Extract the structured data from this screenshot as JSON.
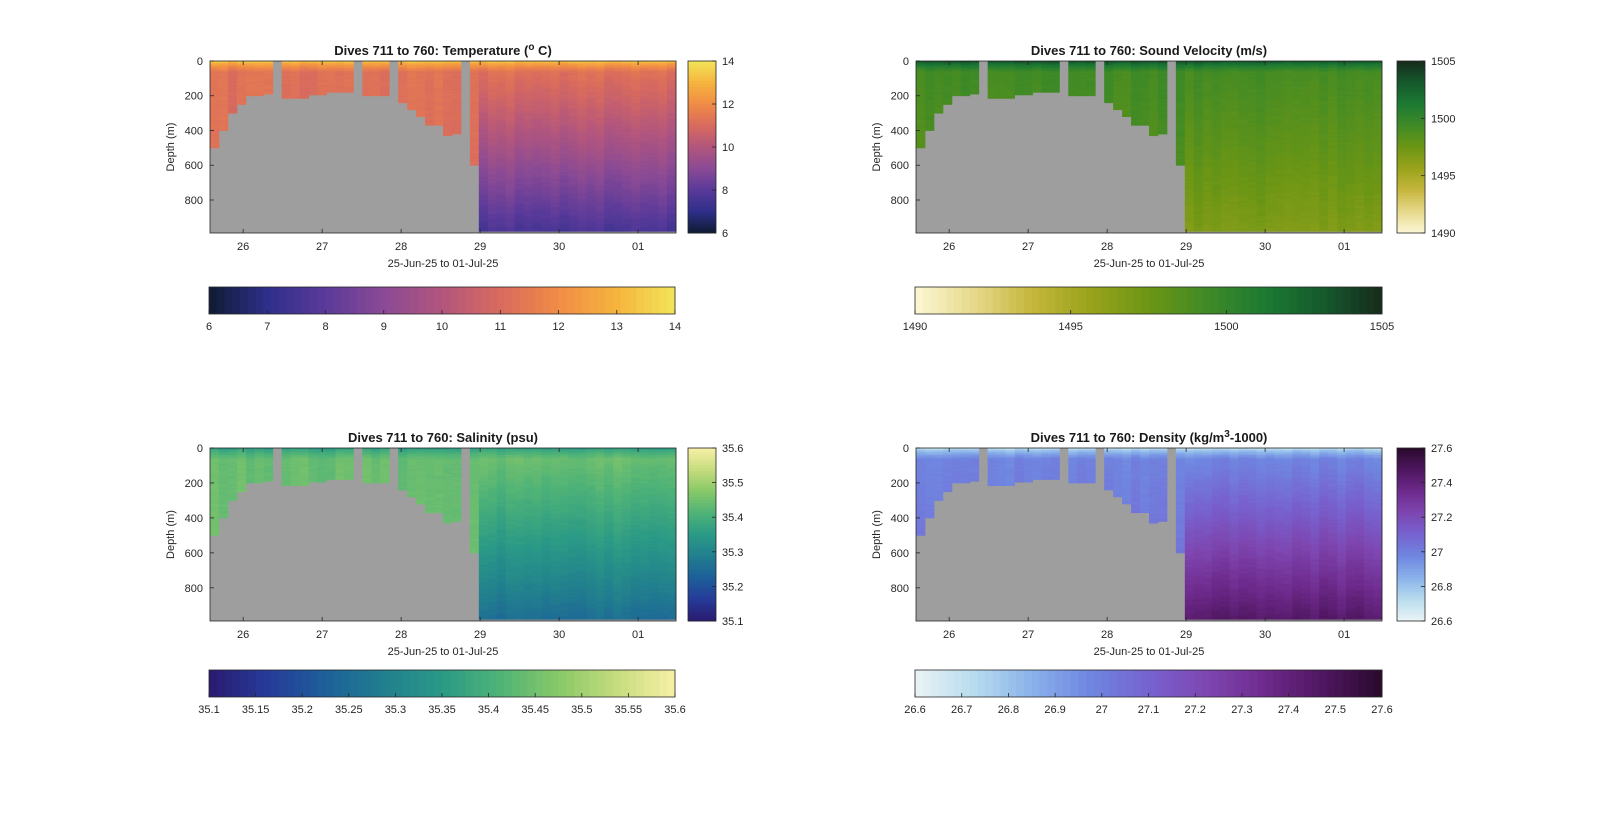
{
  "figure": {
    "background": "#ffffff",
    "missing_color": "#9e9e9e"
  },
  "chart_data": [
    {
      "type": "heatmap",
      "title_parts": [
        "Dives 711 to 760: Temperature (",
        "o",
        " C)"
      ],
      "xlabel": "25-Jun-25 to 01-Jul-25",
      "ylabel": "Depth (m)",
      "x_ticks": [
        "26",
        "27",
        "28",
        "29",
        "30",
        "01"
      ],
      "x_tick_values": [
        26,
        27,
        28,
        29,
        30,
        31
      ],
      "xlim": [
        25.58,
        31.48
      ],
      "y_ticks": [
        "0",
        "200",
        "400",
        "600",
        "800"
      ],
      "y_tick_values": [
        0,
        200,
        400,
        600,
        800
      ],
      "ylim": [
        0,
        990
      ],
      "y_reversed": true,
      "colorbar": {
        "range": [
          6,
          14
        ],
        "ticks": [
          "14",
          "12",
          "10",
          "8",
          "6"
        ],
        "tick_values": [
          14,
          12,
          10,
          8,
          6
        ],
        "colors": [
          "#0f1b33",
          "#2e2f8a",
          "#5a3a9a",
          "#8a4a95",
          "#b3567d",
          "#d86a5e",
          "#f08c45",
          "#f6b43e",
          "#f2e55a"
        ]
      },
      "h_colorbar_ticks": [
        "6",
        "7",
        "8",
        "9",
        "10",
        "11",
        "12",
        "13",
        "14"
      ],
      "h_colorbar_values": [
        6,
        7,
        8,
        9,
        10,
        11,
        12,
        13,
        14
      ],
      "profile": {
        "surface": 13.2,
        "upper_value": 11.2,
        "deep_shelf": 11.0,
        "deep_offshelf": 7.6,
        "thermocline_depth": 60
      }
    },
    {
      "type": "heatmap",
      "title_parts": [
        "Dives 711 to 760: Sound Velocity (m/s)"
      ],
      "xlabel": "25-Jun-25 to 01-Jul-25",
      "ylabel": "Depth (m)",
      "x_ticks": [
        "26",
        "27",
        "28",
        "29",
        "30",
        "01"
      ],
      "x_tick_values": [
        26,
        27,
        28,
        29,
        30,
        31
      ],
      "xlim": [
        25.58,
        31.48
      ],
      "y_ticks": [
        "0",
        "200",
        "400",
        "600",
        "800"
      ],
      "y_tick_values": [
        0,
        200,
        400,
        600,
        800
      ],
      "ylim": [
        0,
        990
      ],
      "y_reversed": true,
      "colorbar": {
        "range": [
          1490,
          1505
        ],
        "ticks": [
          "1505",
          "1500",
          "1495",
          "1490"
        ],
        "tick_values": [
          1505,
          1500,
          1495,
          1490
        ],
        "colors": [
          "#fcf7d5",
          "#e6d98c",
          "#c5b63c",
          "#9aa31c",
          "#6c9615",
          "#3f8a26",
          "#1d7a33",
          "#15592c",
          "#172b1c"
        ]
      },
      "h_colorbar_ticks": [
        "1490",
        "1495",
        "1500",
        "1505"
      ],
      "h_colorbar_values": [
        1490,
        1495,
        1500,
        1505
      ],
      "profile": {
        "surface": 1503.2,
        "upper_value": 1499.2,
        "deep_shelf": 1498.0,
        "deep_offshelf": 1496.8,
        "thermocline_depth": 60
      }
    },
    {
      "type": "heatmap",
      "title_parts": [
        "Dives 711 to 760: Salinity (psu)"
      ],
      "xlabel": "25-Jun-25 to 01-Jul-25",
      "ylabel": "Depth (m)",
      "x_ticks": [
        "26",
        "27",
        "28",
        "29",
        "30",
        "01"
      ],
      "x_tick_values": [
        26,
        27,
        28,
        29,
        30,
        31
      ],
      "xlim": [
        25.58,
        31.48
      ],
      "y_ticks": [
        "0",
        "200",
        "400",
        "600",
        "800"
      ],
      "y_tick_values": [
        0,
        200,
        400,
        600,
        800
      ],
      "ylim": [
        0,
        990
      ],
      "y_reversed": true,
      "colorbar": {
        "range": [
          35.1,
          35.6
        ],
        "ticks": [
          "35.6",
          "35.5",
          "35.4",
          "35.3",
          "35.2",
          "35.1"
        ],
        "tick_values": [
          35.6,
          35.5,
          35.4,
          35.3,
          35.2,
          35.1
        ],
        "colors": [
          "#2a1a70",
          "#263b98",
          "#1d5f9a",
          "#217f8e",
          "#2b9a86",
          "#4fb377",
          "#88c868",
          "#c6dc7e",
          "#f8f0a6"
        ]
      },
      "h_colorbar_ticks": [
        "35.1",
        "35.15",
        "35.2",
        "35.25",
        "35.3",
        "35.35",
        "35.4",
        "35.45",
        "35.5",
        "35.55",
        "35.6"
      ],
      "h_colorbar_values": [
        35.1,
        35.15,
        35.2,
        35.25,
        35.3,
        35.35,
        35.4,
        35.45,
        35.5,
        35.55,
        35.6
      ],
      "profile": {
        "surface": 35.36,
        "upper_value": 35.44,
        "deep_shelf": 35.45,
        "deep_offshelf": 35.25,
        "thermocline_depth": 60
      }
    },
    {
      "type": "heatmap",
      "title_parts": [
        "Dives 711 to 760: Density (kg/m",
        "3",
        "-1000)"
      ],
      "xlabel": "25-Jun-25 to 01-Jul-25",
      "ylabel": "Depth (m)",
      "x_ticks": [
        "26",
        "27",
        "28",
        "29",
        "30",
        "01"
      ],
      "x_tick_values": [
        26,
        27,
        28,
        29,
        30,
        31
      ],
      "xlim": [
        25.58,
        31.48
      ],
      "y_ticks": [
        "0",
        "200",
        "400",
        "600",
        "800"
      ],
      "y_tick_values": [
        0,
        200,
        400,
        600,
        800
      ],
      "ylim": [
        0,
        990
      ],
      "y_reversed": true,
      "colorbar": {
        "range": [
          26.6,
          27.6
        ],
        "ticks": [
          "27.6",
          "27.4",
          "27.2",
          "27",
          "26.8",
          "26.6"
        ],
        "tick_values": [
          27.6,
          27.4,
          27.2,
          27.0,
          26.8,
          26.6
        ],
        "colors": [
          "#eaf4f6",
          "#b8dcee",
          "#8ab2ea",
          "#6f86e0",
          "#7763d0",
          "#7e46b0",
          "#6e2a8c",
          "#4e165f",
          "#2a0a2c"
        ]
      },
      "h_colorbar_ticks": [
        "26.6",
        "26.7",
        "26.8",
        "26.9",
        "27",
        "27.1",
        "27.2",
        "27.3",
        "27.4",
        "27.5",
        "27.6"
      ],
      "h_colorbar_values": [
        26.6,
        26.7,
        26.8,
        26.9,
        27.0,
        27.1,
        27.2,
        27.3,
        27.4,
        27.5,
        27.6
      ],
      "profile": {
        "surface": 26.72,
        "upper_value": 26.98,
        "deep_shelf": 27.08,
        "deep_offshelf": 27.45,
        "thermocline_depth": 60
      }
    }
  ]
}
